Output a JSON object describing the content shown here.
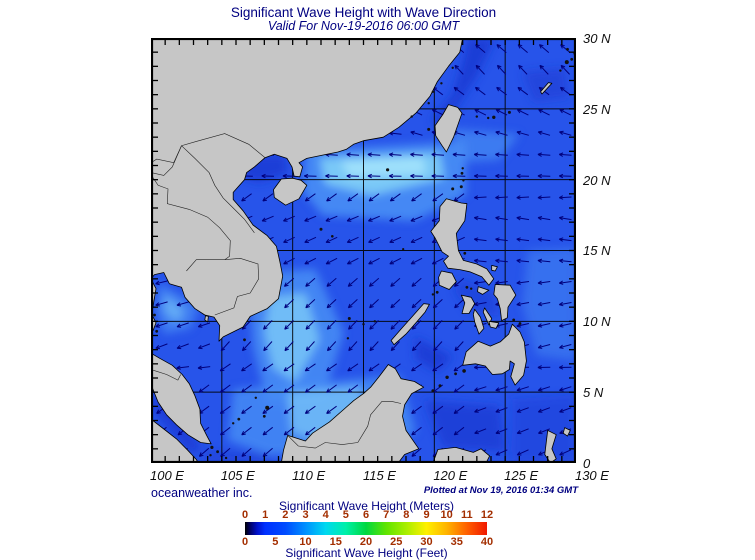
{
  "header": {
    "title": "Significant Wave Height with Wave Direction",
    "subtitle": "Valid For Nov-19-2016 06:00 GMT"
  },
  "footer": {
    "credit": "oceanweather inc.",
    "plotted": "Plotted at Nov 19, 2016 01:34 GMT"
  },
  "map": {
    "lat_labels": [
      "30 N",
      "25 N",
      "20 N",
      "15 N",
      "10 N",
      "5 N",
      "0"
    ],
    "lon_labels": [
      "100 E",
      "105 E",
      "110 E",
      "115 E",
      "120 E",
      "125 E",
      "130 E"
    ],
    "lat_ticks_deg": [
      30,
      25,
      20,
      15,
      10,
      5,
      0
    ],
    "lon_ticks_deg": [
      100,
      105,
      110,
      115,
      120,
      125,
      130
    ]
  },
  "legend": {
    "meters_label": "Significant Wave Height (Meters)",
    "meters_ticks": [
      "0",
      "1",
      "2",
      "3",
      "4",
      "5",
      "6",
      "7",
      "8",
      "9",
      "10",
      "11",
      "12"
    ],
    "feet_label": "Significant Wave Height (Feet)",
    "feet_ticks": [
      "0",
      "5",
      "10",
      "15",
      "20",
      "25",
      "30",
      "35",
      "40"
    ],
    "gradient_stops": [
      [
        0,
        "#000000"
      ],
      [
        2,
        "#000060"
      ],
      [
        5,
        "#0010C8"
      ],
      [
        8.3,
        "#0030FF"
      ],
      [
        16.7,
        "#004CFF"
      ],
      [
        25,
        "#0090FF"
      ],
      [
        33.3,
        "#00D8F0"
      ],
      [
        41.7,
        "#00F0A8"
      ],
      [
        50,
        "#00D840"
      ],
      [
        58.3,
        "#60E400"
      ],
      [
        66.7,
        "#AAEE00"
      ],
      [
        75,
        "#FFF000"
      ],
      [
        83.3,
        "#FFB400"
      ],
      [
        91.7,
        "#FF6000"
      ],
      [
        100,
        "#F01800"
      ]
    ]
  },
  "colors": {
    "title_text": "#000080",
    "legend_tick_text": "#A32E00",
    "land": "#C6C6C6",
    "coastline": "#000000",
    "sea_base": "#2754EA",
    "sea_dark": "#1B3AD2",
    "sea_light": "#478BF4",
    "sea_lighter": "#7CCBF8",
    "sea_brightest": "#A6E4FB",
    "arrow": "#00007D",
    "grid": "#000000"
  }
}
